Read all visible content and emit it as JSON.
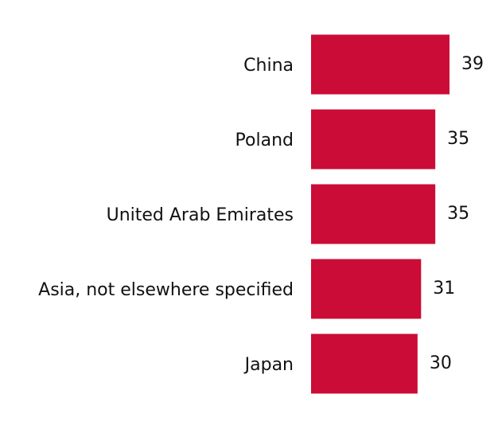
{
  "chart_data": {
    "type": "hbar",
    "categories": [
      "China",
      "Poland",
      "United Arab Emirates",
      "Asia, not elsewhere specified",
      "Japan"
    ],
    "values": [
      39,
      35,
      35,
      31,
      30
    ],
    "color": "#cb0c36"
  }
}
